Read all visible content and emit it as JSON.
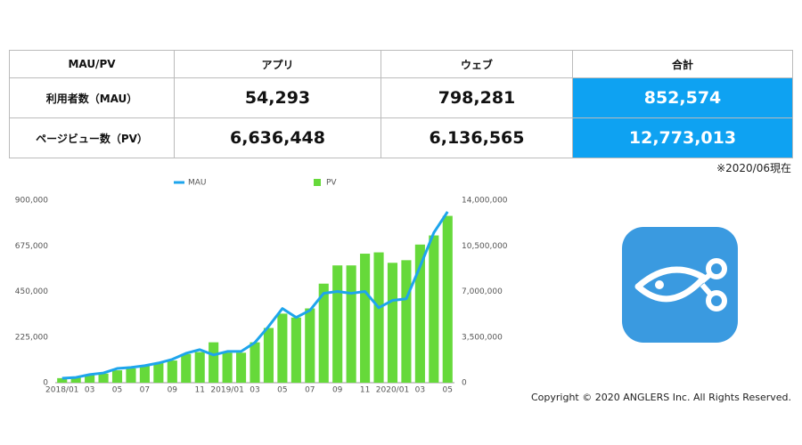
{
  "table": {
    "header": [
      "MAU/PV",
      "アプリ",
      "ウェブ",
      "合計"
    ],
    "rows": [
      [
        "利用者数（MAU）",
        "54,293",
        "798,281",
        "852,574"
      ],
      [
        "ページビュー数（PV）",
        "6,636,448",
        "6,136,565",
        "12,773,013"
      ]
    ]
  },
  "note": "※2020/06現在",
  "copyright": "Copyright © 2020 ANGLERS Inc. All Rights Reserved.",
  "chart_data": {
    "type": "combo",
    "categories": [
      "2018/01",
      null,
      "03",
      null,
      "05",
      null,
      "07",
      null,
      "09",
      null,
      "11",
      null,
      "2019/01",
      null,
      "03",
      null,
      "05",
      null,
      "07",
      null,
      "09",
      null,
      "11",
      null,
      "2020/01",
      null,
      "03",
      null,
      "05"
    ],
    "series": [
      {
        "name": "MAU",
        "type": "line",
        "color": "#1ea5ec",
        "axis": "y",
        "values": [
          22000,
          26000,
          40000,
          48000,
          70000,
          75000,
          84000,
          97000,
          115000,
          145000,
          163000,
          137000,
          154000,
          154000,
          198000,
          278000,
          366000,
          322000,
          357000,
          441000,
          450000,
          441000,
          450000,
          370000,
          406000,
          414000,
          573000,
          740000,
          843000
        ]
      },
      {
        "name": "PV",
        "type": "bar",
        "color": "#66d93a",
        "axis": "y2",
        "values": [
          350000,
          400000,
          600000,
          700000,
          950000,
          1100000,
          1300000,
          1500000,
          1700000,
          2200000,
          2350000,
          3100000,
          2300000,
          2300000,
          3100000,
          4200000,
          5300000,
          5000000,
          5700000,
          7600000,
          9000000,
          9000000,
          9900000,
          10000000,
          9200000,
          9400000,
          10600000,
          11300000,
          12800000
        ]
      }
    ],
    "ylim": [
      0,
      900000
    ],
    "yticks": [
      0,
      {
        "value": 225000,
        "label": "225,000"
      },
      {
        "value": 450000,
        "label": "450,000"
      },
      {
        "value": 675000,
        "label": "675,000"
      },
      {
        "value": 900000,
        "label": "900,000"
      }
    ],
    "y2lim": [
      0,
      14000000
    ],
    "y2ticks": [
      0,
      {
        "value": 3500000,
        "label": "3,500,000"
      },
      {
        "value": 7000000,
        "label": "7,000,000"
      },
      {
        "value": 10500000,
        "label": "10,500,000"
      },
      {
        "value": 14000000,
        "label": "14,000,000"
      }
    ],
    "grid": false,
    "legend": "top"
  }
}
